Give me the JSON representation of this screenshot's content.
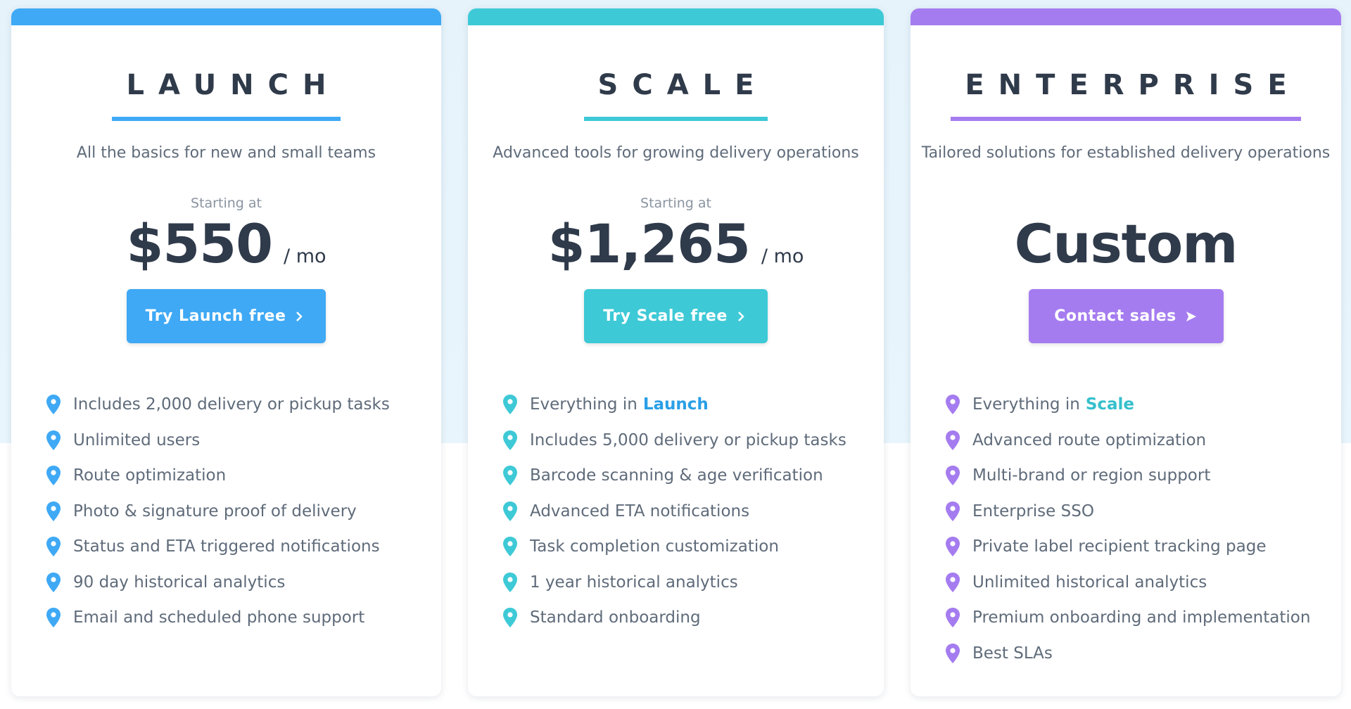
{
  "plans": [
    {
      "name": "LAUNCH",
      "tagline": "All the basics for new and small teams",
      "price_prefix": "Starting at",
      "price": "$550",
      "price_unit": "/ mo",
      "button": "Try Launch free",
      "features": [
        "Includes 2,000 delivery or pickup tasks",
        "Unlimited users",
        "Route optimization",
        "Photo & signature proof of delivery",
        "Status and ETA triggered notifications",
        "90 day historical analytics",
        "Email and scheduled phone support"
      ]
    },
    {
      "name": "SCALE",
      "tagline": "Advanced tools for growing delivery operations",
      "price_prefix": "Starting at",
      "price": "$1,265",
      "price_unit": "/ mo",
      "button": "Try Scale free",
      "includes_prefix": "Everything in",
      "includes_plan": "Launch",
      "features": [
        "Includes 5,000 delivery or pickup tasks",
        "Barcode scanning & age verification",
        "Advanced ETA notifications",
        "Task completion customization",
        "1 year historical analytics",
        "Standard onboarding"
      ]
    },
    {
      "name": "ENTERPRISE",
      "tagline": "Tailored solutions for established delivery operations",
      "price": "Custom",
      "button": "Contact sales",
      "includes_prefix": "Everything in",
      "includes_plan": "Scale",
      "features": [
        "Advanced route optimization",
        "Multi-brand or region support",
        "Enterprise SSO",
        "Private label recipient tracking page",
        "Unlimited historical analytics",
        "Premium onboarding and implementation",
        "Best SLAs"
      ]
    }
  ]
}
